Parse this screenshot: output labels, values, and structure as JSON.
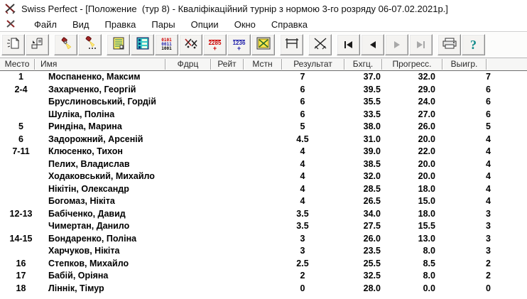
{
  "window": {
    "title": "Swiss Perfect - [Положение  (тур 8) - Кваліфікаційний турнір з нормою 3-го розряду 06-07.02.2021р.]"
  },
  "menu": {
    "items": [
      "Файл",
      "Вид",
      "Правка",
      "Пары",
      "Опции",
      "Окно",
      "Справка"
    ]
  },
  "toolbar": {
    "icon_names": [
      "new-report-icon",
      "open-report-icon",
      "highlight-icon",
      "highlight-options-icon",
      "report-yellow-icon",
      "report-cyan-icon",
      "binary-list-icon",
      "pairing-swords-icon",
      "rating-icon",
      "numbers-icon",
      "board-picture-icon",
      "crosstable-icon",
      "crossed-swords-icon",
      "first-round-icon",
      "prev-round-icon",
      "next-round-icon",
      "last-round-icon",
      "print-icon",
      "help-icon"
    ],
    "rating_icon_text": "2285",
    "rating_icon_plus": "+",
    "numbers_icon_text": "1236",
    "numbers_icon_plus": "+",
    "binary_icon_lines": {
      "0": "0101",
      "1": "0011",
      "2": "1001"
    },
    "help_glyph": "?"
  },
  "table": {
    "columns": [
      "Место",
      "Имя",
      "Фдрц",
      "Рейт",
      "Мстн",
      "Результат",
      "Бхгц.",
      "Прогресс.",
      "Выигр."
    ],
    "rows": [
      {
        "place": "1",
        "name": "Моспаненко, Максим",
        "fed": "",
        "rating": "",
        "local": "",
        "result": "7",
        "buchholz": "37.0",
        "progress": "32.0",
        "wins": "7"
      },
      {
        "place": "2-4",
        "name": "Захарченко, Георгій",
        "fed": "",
        "rating": "",
        "local": "",
        "result": "6",
        "buchholz": "39.5",
        "progress": "29.0",
        "wins": "6"
      },
      {
        "place": "",
        "name": "Бруслиновський, Гордій",
        "fed": "",
        "rating": "",
        "local": "",
        "result": "6",
        "buchholz": "35.5",
        "progress": "24.0",
        "wins": "6"
      },
      {
        "place": "",
        "name": "Шуліка, Поліна",
        "fed": "",
        "rating": "",
        "local": "",
        "result": "6",
        "buchholz": "33.5",
        "progress": "27.0",
        "wins": "6"
      },
      {
        "place": "5",
        "name": "Риндіна, Марина",
        "fed": "",
        "rating": "",
        "local": "",
        "result": "5",
        "buchholz": "38.0",
        "progress": "26.0",
        "wins": "5"
      },
      {
        "place": "6",
        "name": "Задорожний, Арсеній",
        "fed": "",
        "rating": "",
        "local": "",
        "result": "4.5",
        "buchholz": "31.0",
        "progress": "20.0",
        "wins": "4"
      },
      {
        "place": "7-11",
        "name": "Клюсенко, Тихон",
        "fed": "",
        "rating": "",
        "local": "",
        "result": "4",
        "buchholz": "39.0",
        "progress": "22.0",
        "wins": "4"
      },
      {
        "place": "",
        "name": "Пелих, Владислав",
        "fed": "",
        "rating": "",
        "local": "",
        "result": "4",
        "buchholz": "38.5",
        "progress": "20.0",
        "wins": "4"
      },
      {
        "place": "",
        "name": "Ходаковський, Михайло",
        "fed": "",
        "rating": "",
        "local": "",
        "result": "4",
        "buchholz": "32.0",
        "progress": "20.0",
        "wins": "4"
      },
      {
        "place": "",
        "name": "Нікітін, Олександр",
        "fed": "",
        "rating": "",
        "local": "",
        "result": "4",
        "buchholz": "28.5",
        "progress": "18.0",
        "wins": "4"
      },
      {
        "place": "",
        "name": "Богомаз, Нікіта",
        "fed": "",
        "rating": "",
        "local": "",
        "result": "4",
        "buchholz": "26.5",
        "progress": "15.0",
        "wins": "4"
      },
      {
        "place": "12-13",
        "name": "Бабіченко, Давид",
        "fed": "",
        "rating": "",
        "local": "",
        "result": "3.5",
        "buchholz": "34.0",
        "progress": "18.0",
        "wins": "3"
      },
      {
        "place": "",
        "name": "Чимертан, Данило",
        "fed": "",
        "rating": "",
        "local": "",
        "result": "3.5",
        "buchholz": "27.5",
        "progress": "15.5",
        "wins": "3"
      },
      {
        "place": "14-15",
        "name": "Бондаренко, Поліна",
        "fed": "",
        "rating": "",
        "local": "",
        "result": "3",
        "buchholz": "26.0",
        "progress": "13.0",
        "wins": "3"
      },
      {
        "place": "",
        "name": "Харчуков, Нікіта",
        "fed": "",
        "rating": "",
        "local": "",
        "result": "3",
        "buchholz": "23.5",
        "progress": "8.0",
        "wins": "3"
      },
      {
        "place": "16",
        "name": "Степков, Михайло",
        "fed": "",
        "rating": "",
        "local": "",
        "result": "2.5",
        "buchholz": "25.5",
        "progress": "8.5",
        "wins": "2"
      },
      {
        "place": "17",
        "name": "Бабій, Оріяна",
        "fed": "",
        "rating": "",
        "local": "",
        "result": "2",
        "buchholz": "32.5",
        "progress": "8.0",
        "wins": "2"
      },
      {
        "place": "18",
        "name": "Ліннік, Тімур",
        "fed": "",
        "rating": "",
        "local": "",
        "result": "0",
        "buchholz": "28.0",
        "progress": "0.0",
        "wins": "0"
      }
    ]
  }
}
